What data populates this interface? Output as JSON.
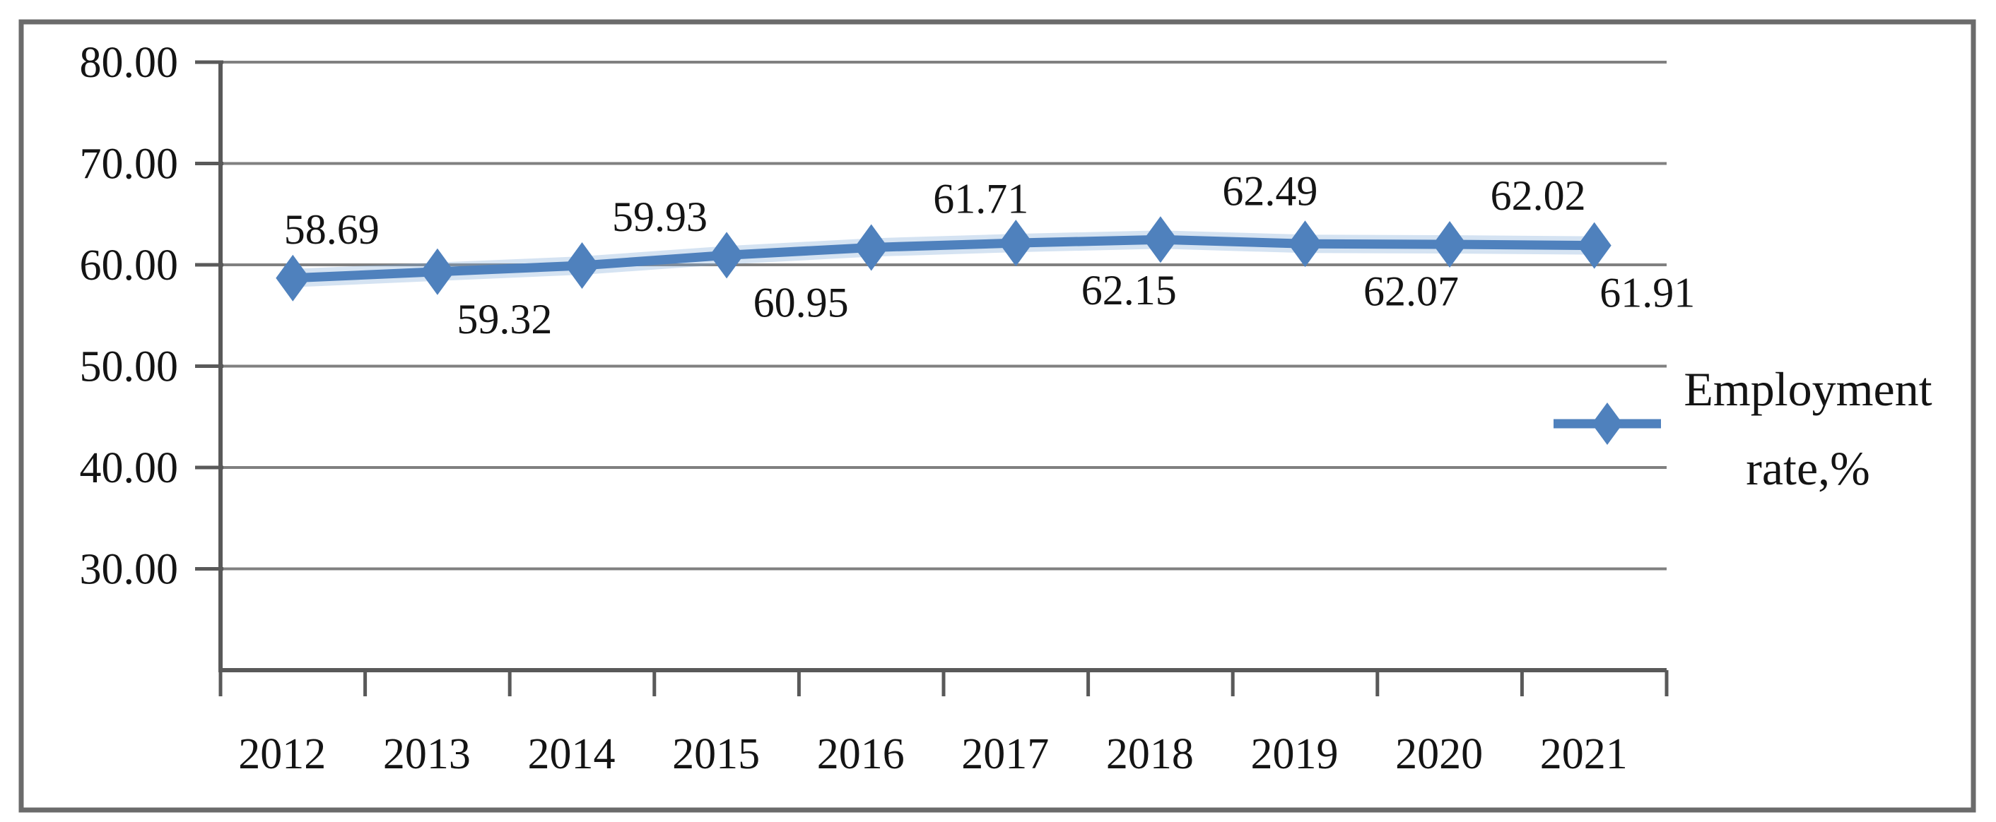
{
  "figure": {
    "background": "#ffffff",
    "border_color": "#6b6b6b"
  },
  "chart_data": {
    "type": "line",
    "title": "",
    "categories": [
      "2012",
      "2013",
      "2014",
      "2015",
      "2016",
      "2017",
      "2018",
      "2019",
      "2020",
      "2021"
    ],
    "series": [
      {
        "name": "Employment rate,%",
        "values": [
          58.69,
          59.32,
          59.93,
          60.95,
          61.71,
          62.15,
          62.49,
          62.07,
          62.02,
          61.91
        ],
        "data_labels": [
          "58.69",
          "59.32",
          "59.93",
          "60.95",
          "61.71",
          "62.15",
          "62.49",
          "62.07",
          "62.02",
          "61.91"
        ],
        "label_positions": [
          "above",
          "below",
          "above",
          "below",
          "above",
          "below",
          "above",
          "below",
          "above",
          "below"
        ],
        "color": "#4F81BD",
        "marker": "diamond"
      }
    ],
    "y_axis": {
      "tick_labels": [
        "80.00",
        "70.00",
        "60.00",
        "50.00",
        "40.00",
        "30.00"
      ],
      "tick_values": [
        80,
        70,
        60,
        50,
        40,
        30
      ],
      "min": 20,
      "max": 80,
      "major_unit": 10,
      "number_format": "0.00"
    },
    "x_axis": {
      "labels": [
        "2012",
        "2013",
        "2014",
        "2015",
        "2016",
        "2017",
        "2018",
        "2019",
        "2020",
        "2021"
      ]
    },
    "legend": {
      "label": "Employment rate,%",
      "lines": [
        "Employment",
        "rate,%"
      ],
      "position": "right-middle",
      "swatch": "line-with-diamond"
    },
    "grid": {
      "horizontal_gridlines": true,
      "gridline_color": "#808080",
      "axis_color": "#595959"
    },
    "colors": {
      "series_blue": "#4F81BD",
      "series_halo_blue": "#7da7d8",
      "gridline_gray": "#808080",
      "axis_gray": "#595959",
      "border_gray": "#6b6b6b",
      "text_black": "#141414",
      "background": "#ffffff"
    }
  }
}
